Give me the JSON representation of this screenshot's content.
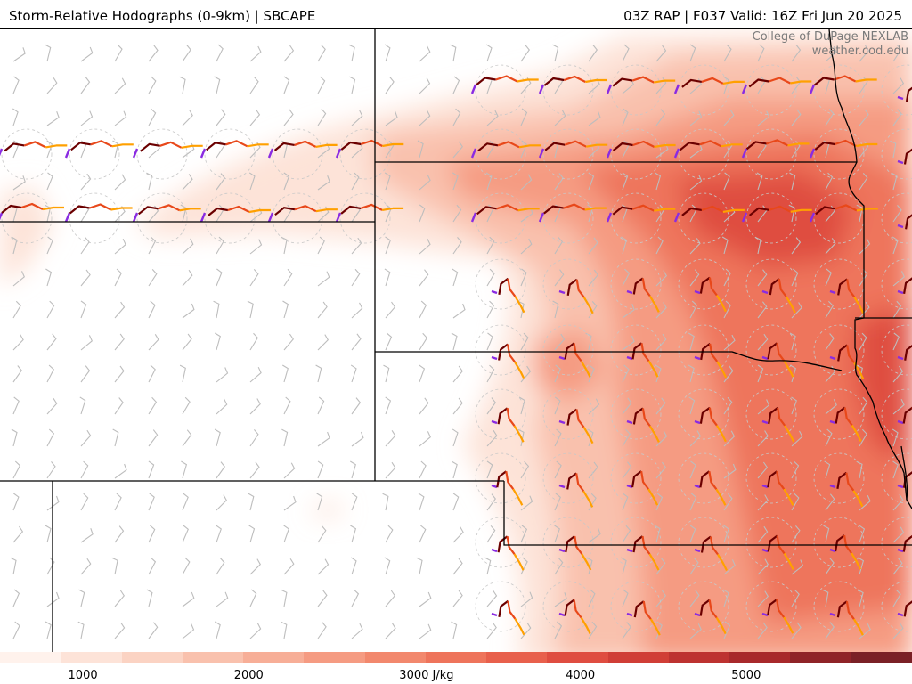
{
  "header": {
    "title": "Storm-Relative Hodographs (0-9km) | SBCAPE",
    "run_info": "03Z RAP | F037 Valid: 16Z Fri Jun 20 2025"
  },
  "credit": {
    "line1": "College of DuPage NEXLAB",
    "line2": "weather.cod.edu"
  },
  "colorbar": {
    "unit": "J/kg",
    "ticks": [
      {
        "value": 1000,
        "label": "1000"
      },
      {
        "value": 2000,
        "label": "2000"
      },
      {
        "value": 3000,
        "label": "3000 J/kg"
      },
      {
        "value": 4000,
        "label": "4000"
      },
      {
        "value": 5000,
        "label": "5000"
      }
    ],
    "min": 500,
    "max": 6000,
    "colors": [
      "#fff2ec",
      "#fde3d8",
      "#fbd3c3",
      "#f9c1ad",
      "#f7ae97",
      "#f59b82",
      "#f2886d",
      "#ee745b",
      "#e8604c",
      "#df4d40",
      "#d03e36",
      "#bd3230",
      "#a8292b",
      "#8f2328",
      "#7a2026"
    ]
  },
  "hodograph_colors": {
    "low_level": "#6b0000",
    "mid_level": "#e8481a",
    "upper_level": "#ffa000",
    "storm_motion": "#8a2be2",
    "barb": "#bdbdbd"
  }
}
